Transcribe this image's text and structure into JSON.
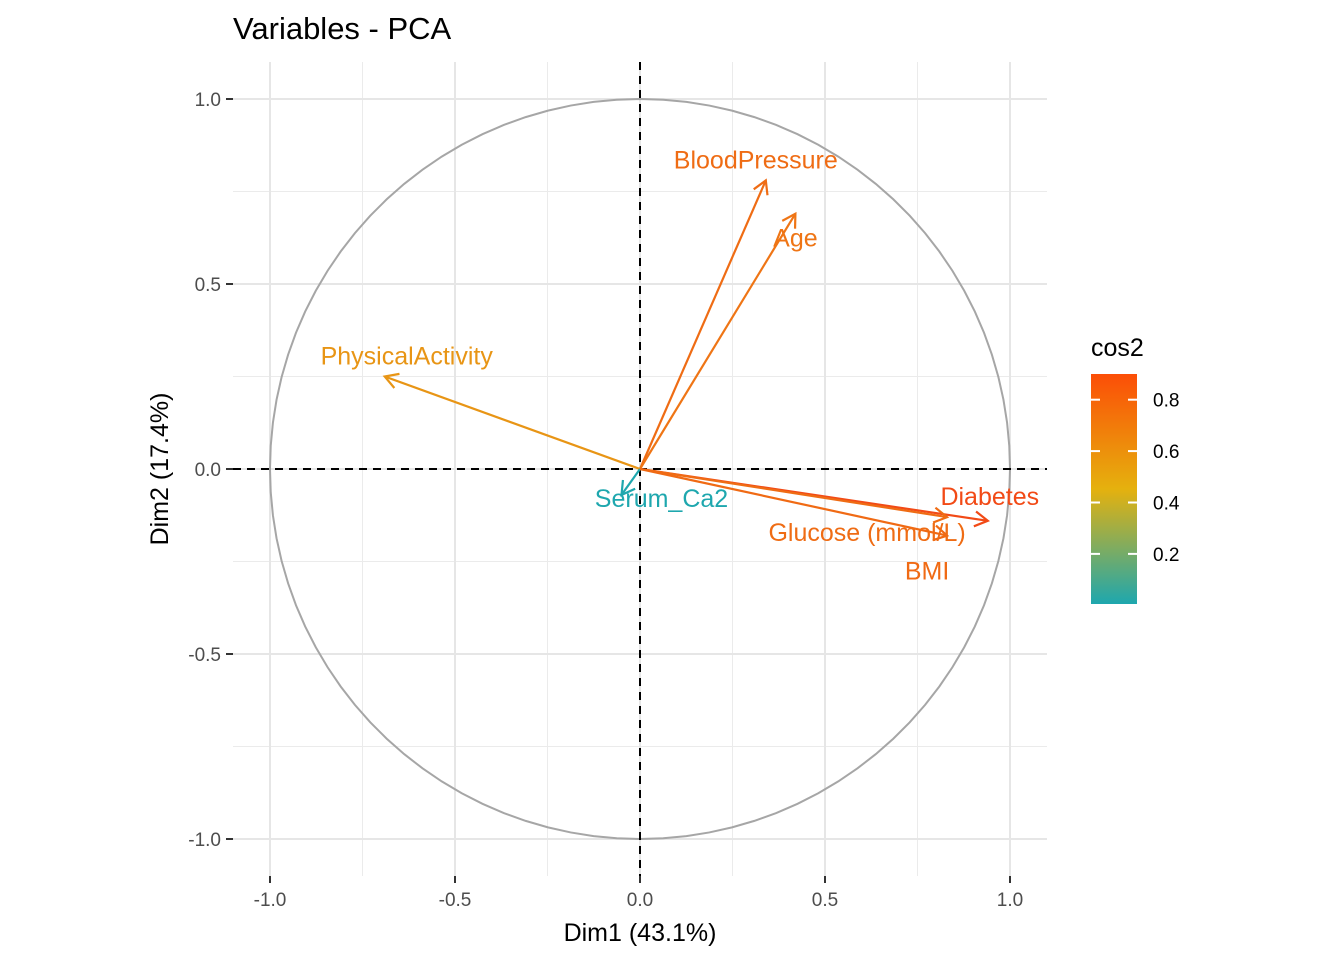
{
  "chart_data": {
    "type": "scatter",
    "title": "Variables - PCA",
    "xlabel": "Dim1 (43.1%)",
    "ylabel": "Dim2 (17.4%)",
    "xlim": [
      -1.1,
      1.1
    ],
    "ylim": [
      -1.1,
      1.1
    ],
    "x_ticks": [
      -1.0,
      -0.5,
      0.0,
      0.5,
      1.0
    ],
    "y_ticks": [
      -1.0,
      -0.5,
      0.0,
      0.5,
      1.0
    ],
    "x_tick_labels": [
      "-1.0",
      "-0.5",
      "0.0",
      "0.5",
      "1.0"
    ],
    "y_tick_labels": [
      "-1.0",
      "-0.5",
      "0.0",
      "0.5",
      "1.0"
    ],
    "grid": true,
    "correlation_circle": true,
    "reference_lines": "dashed at x=0 and y=0",
    "variables": [
      {
        "name": "BloodPressure",
        "x": 0.34,
        "y": 0.78,
        "cos2": 0.72,
        "color": "#EF6C14"
      },
      {
        "name": "Age",
        "x": 0.42,
        "y": 0.69,
        "cos2": 0.66,
        "color": "#EF7515"
      },
      {
        "name": "PhysicalActivity",
        "x": -0.69,
        "y": 0.25,
        "cos2": 0.54,
        "color": "#E89515"
      },
      {
        "name": "Serum_Ca2",
        "x": -0.05,
        "y": -0.07,
        "cos2": 0.01,
        "color": "#1EA7AE"
      },
      {
        "name": "Diabetes",
        "x": 0.94,
        "y": -0.14,
        "cos2": 0.9,
        "color": "#F24A16"
      },
      {
        "name": "Glucose (mmol/L)",
        "x": 0.83,
        "y": -0.13,
        "cos2": 0.71,
        "color": "#EF6C14"
      },
      {
        "name": "BMI",
        "x": 0.83,
        "y": -0.18,
        "cos2": 0.72,
        "color": "#F06A14"
      }
    ],
    "legend": {
      "title": "cos2",
      "placement": "right",
      "ticks": [
        0.2,
        0.4,
        0.6,
        0.8
      ],
      "tick_labels": [
        "0.2",
        "0.4",
        "0.6",
        "0.8"
      ],
      "range": [
        0.005,
        0.9
      ],
      "gradient_colors": [
        "#1EA7AE",
        "#E5B10E",
        "#FC4E07"
      ]
    }
  }
}
